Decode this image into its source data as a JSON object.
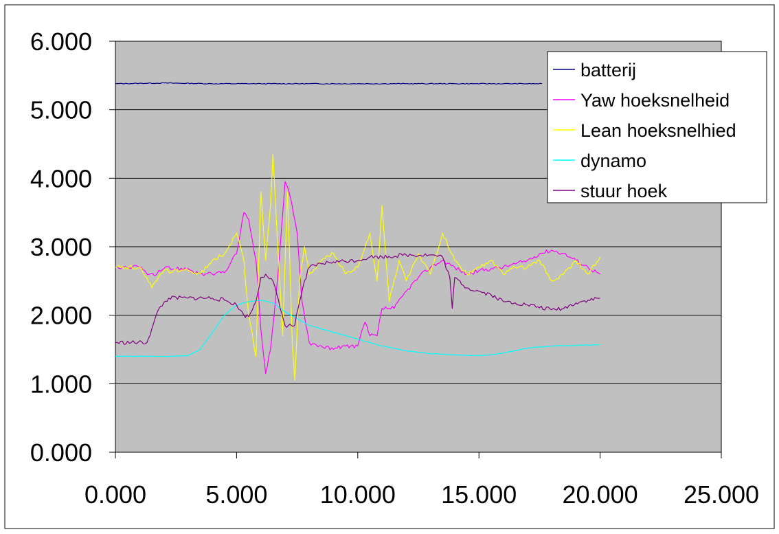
{
  "chart_data": {
    "type": "line",
    "title": "",
    "xlabel": "",
    "ylabel": "",
    "xlim": [
      0,
      25
    ],
    "ylim": [
      0,
      6
    ],
    "x_ticks": [
      0,
      5,
      10,
      15,
      20,
      25
    ],
    "y_ticks": [
      0,
      1,
      2,
      3,
      4,
      5,
      6
    ],
    "x_tick_labels": [
      "0.000",
      "5.000",
      "10.000",
      "15.000",
      "20.000",
      "25.000"
    ],
    "y_tick_labels": [
      "0.000",
      "1.000",
      "2.000",
      "3.000",
      "4.000",
      "5.000",
      "6.000"
    ],
    "grid": "horizontal",
    "plot_background": "#C0C0C0",
    "legend_position": "top-right",
    "series": [
      {
        "name": "batterij",
        "color": "#000080",
        "points": [
          [
            0,
            5.38
          ],
          [
            2,
            5.39
          ],
          [
            4,
            5.38
          ],
          [
            6,
            5.38
          ],
          [
            8,
            5.38
          ],
          [
            10,
            5.38
          ],
          [
            12,
            5.38
          ],
          [
            14,
            5.38
          ],
          [
            16,
            5.38
          ],
          [
            17.6,
            5.38
          ]
        ]
      },
      {
        "name": "Yaw hoeksnelheid",
        "color": "#FF00FF",
        "points": [
          [
            0,
            2.7
          ],
          [
            1,
            2.7
          ],
          [
            1.4,
            2.6
          ],
          [
            1.6,
            2.58
          ],
          [
            2,
            2.68
          ],
          [
            3,
            2.68
          ],
          [
            3.5,
            2.6
          ],
          [
            4,
            2.6
          ],
          [
            4.5,
            2.62
          ],
          [
            5,
            2.9
          ],
          [
            5.3,
            3.5
          ],
          [
            5.5,
            3.4
          ],
          [
            5.8,
            2.8
          ],
          [
            6.0,
            1.8
          ],
          [
            6.2,
            1.15
          ],
          [
            6.4,
            1.5
          ],
          [
            6.6,
            2.2
          ],
          [
            6.8,
            3.0
          ],
          [
            7.0,
            3.95
          ],
          [
            7.2,
            3.75
          ],
          [
            7.5,
            3.2
          ],
          [
            7.7,
            2.2
          ],
          [
            8.0,
            1.6
          ],
          [
            8.5,
            1.55
          ],
          [
            9.0,
            1.5
          ],
          [
            9.5,
            1.55
          ],
          [
            10.0,
            1.55
          ],
          [
            10.3,
            1.9
          ],
          [
            10.5,
            1.7
          ],
          [
            10.8,
            1.7
          ],
          [
            11.0,
            2.1
          ],
          [
            11.5,
            2.1
          ],
          [
            12.0,
            2.35
          ],
          [
            12.5,
            2.55
          ],
          [
            13.0,
            2.7
          ],
          [
            13.5,
            2.8
          ],
          [
            14.0,
            2.7
          ],
          [
            14.5,
            2.6
          ],
          [
            15.0,
            2.65
          ],
          [
            15.5,
            2.68
          ],
          [
            16.0,
            2.7
          ],
          [
            16.5,
            2.75
          ],
          [
            17.0,
            2.8
          ],
          [
            17.5,
            2.9
          ],
          [
            18.0,
            2.95
          ],
          [
            18.5,
            2.9
          ],
          [
            19.0,
            2.8
          ],
          [
            19.5,
            2.7
          ],
          [
            20.0,
            2.6
          ]
        ]
      },
      {
        "name": "Lean hoeksnelhied",
        "color": "#FFFF00",
        "points": [
          [
            0,
            2.7
          ],
          [
            1,
            2.7
          ],
          [
            1.3,
            2.55
          ],
          [
            1.5,
            2.4
          ],
          [
            2,
            2.65
          ],
          [
            3,
            2.65
          ],
          [
            3.5,
            2.6
          ],
          [
            4,
            2.8
          ],
          [
            4.5,
            2.9
          ],
          [
            5,
            3.2
          ],
          [
            5.3,
            2.8
          ],
          [
            5.5,
            2.0
          ],
          [
            5.8,
            1.4
          ],
          [
            6.0,
            3.8
          ],
          [
            6.2,
            2.8
          ],
          [
            6.4,
            3.6
          ],
          [
            6.5,
            4.35
          ],
          [
            6.7,
            3.0
          ],
          [
            6.9,
            1.7
          ],
          [
            7.1,
            3.8
          ],
          [
            7.3,
            1.6
          ],
          [
            7.4,
            1.05
          ],
          [
            7.6,
            2.5
          ],
          [
            7.8,
            3.0
          ],
          [
            8.0,
            2.6
          ],
          [
            8.5,
            2.8
          ],
          [
            9.0,
            2.9
          ],
          [
            9.5,
            2.6
          ],
          [
            10.0,
            2.7
          ],
          [
            10.5,
            3.2
          ],
          [
            10.8,
            2.5
          ],
          [
            11.0,
            3.6
          ],
          [
            11.3,
            2.2
          ],
          [
            11.7,
            2.8
          ],
          [
            12.0,
            2.5
          ],
          [
            12.5,
            2.9
          ],
          [
            13.0,
            2.6
          ],
          [
            13.5,
            3.2
          ],
          [
            14.0,
            2.8
          ],
          [
            14.5,
            2.6
          ],
          [
            15.0,
            2.7
          ],
          [
            15.5,
            2.8
          ],
          [
            16.0,
            2.6
          ],
          [
            16.5,
            2.7
          ],
          [
            17.0,
            2.7
          ],
          [
            17.5,
            2.8
          ],
          [
            18.0,
            2.5
          ],
          [
            18.5,
            2.6
          ],
          [
            19.0,
            2.8
          ],
          [
            19.5,
            2.6
          ],
          [
            20.0,
            2.85
          ]
        ]
      },
      {
        "name": "dynamo",
        "color": "#00FFFF",
        "points": [
          [
            0,
            1.4
          ],
          [
            1,
            1.4
          ],
          [
            2,
            1.4
          ],
          [
            3,
            1.41
          ],
          [
            3.5,
            1.5
          ],
          [
            4,
            1.75
          ],
          [
            4.5,
            2.0
          ],
          [
            5,
            2.15
          ],
          [
            5.5,
            2.2
          ],
          [
            6.0,
            2.22
          ],
          [
            6.5,
            2.18
          ],
          [
            7.0,
            2.05
          ],
          [
            7.5,
            1.95
          ],
          [
            8.0,
            1.85
          ],
          [
            9.0,
            1.75
          ],
          [
            10.0,
            1.65
          ],
          [
            11.0,
            1.55
          ],
          [
            12.0,
            1.48
          ],
          [
            13.0,
            1.44
          ],
          [
            14.0,
            1.42
          ],
          [
            15.0,
            1.41
          ],
          [
            15.5,
            1.42
          ],
          [
            16.0,
            1.45
          ],
          [
            17.0,
            1.52
          ],
          [
            18.0,
            1.55
          ],
          [
            19.0,
            1.56
          ],
          [
            20.0,
            1.57
          ]
        ]
      },
      {
        "name": "stuur hoek",
        "color": "#800080",
        "points": [
          [
            0,
            1.6
          ],
          [
            1.3,
            1.6
          ],
          [
            1.5,
            1.8
          ],
          [
            1.8,
            2.1
          ],
          [
            2.2,
            2.25
          ],
          [
            3,
            2.25
          ],
          [
            4,
            2.25
          ],
          [
            4.5,
            2.22
          ],
          [
            5,
            2.15
          ],
          [
            5.3,
            2.0
          ],
          [
            5.5,
            1.98
          ],
          [
            5.8,
            2.2
          ],
          [
            6.0,
            2.55
          ],
          [
            6.2,
            2.6
          ],
          [
            6.5,
            2.5
          ],
          [
            6.8,
            2.1
          ],
          [
            7.0,
            1.85
          ],
          [
            7.4,
            1.85
          ],
          [
            7.6,
            2.2
          ],
          [
            7.8,
            2.5
          ],
          [
            8.0,
            2.7
          ],
          [
            8.5,
            2.75
          ],
          [
            9.0,
            2.78
          ],
          [
            10.0,
            2.8
          ],
          [
            10.5,
            2.85
          ],
          [
            11.0,
            2.85
          ],
          [
            12.0,
            2.88
          ],
          [
            13.0,
            2.88
          ],
          [
            13.5,
            2.85
          ],
          [
            13.8,
            2.55
          ],
          [
            13.9,
            2.1
          ],
          [
            14.0,
            2.55
          ],
          [
            14.5,
            2.4
          ],
          [
            15.0,
            2.35
          ],
          [
            15.5,
            2.3
          ],
          [
            16.0,
            2.2
          ],
          [
            16.5,
            2.18
          ],
          [
            17.0,
            2.15
          ],
          [
            18.0,
            2.08
          ],
          [
            18.5,
            2.1
          ],
          [
            19.0,
            2.18
          ],
          [
            19.5,
            2.22
          ],
          [
            20.0,
            2.25
          ]
        ]
      }
    ]
  }
}
